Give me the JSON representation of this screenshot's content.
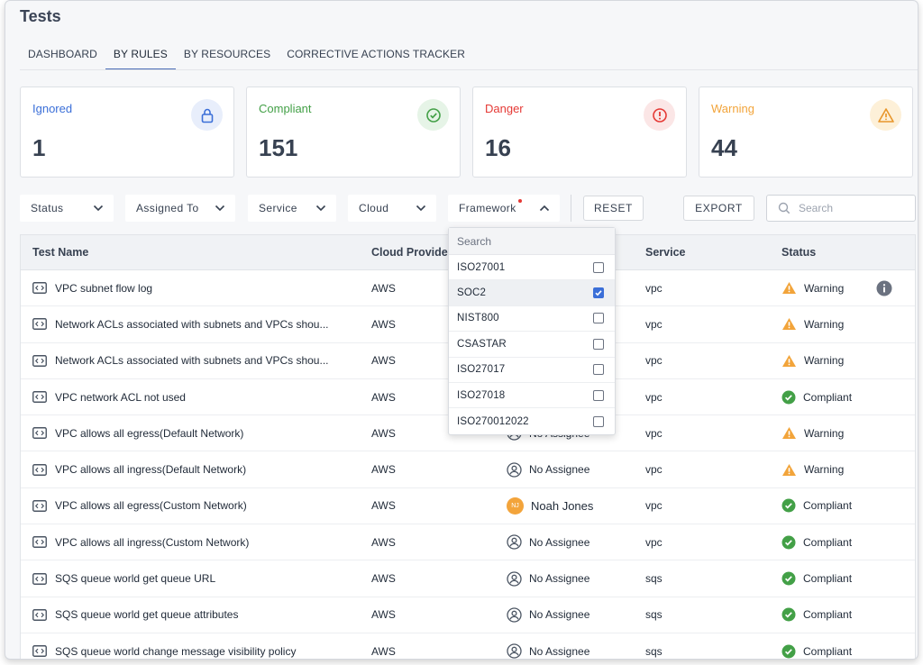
{
  "title": "Tests",
  "tabs": [
    {
      "label": "DASHBOARD",
      "active": false
    },
    {
      "label": "BY RULES",
      "active": true
    },
    {
      "label": "BY RESOURCES",
      "active": false
    },
    {
      "label": "CORRECTIVE ACTIONS TRACKER",
      "active": false
    }
  ],
  "summary_cards": [
    {
      "label": "Ignored",
      "value": "1",
      "color": "#3b6fd8",
      "bg": "#e8eefb",
      "icon": "lock-icon"
    },
    {
      "label": "Compliant",
      "value": "151",
      "color": "#43a047",
      "bg": "#e6f4e7",
      "icon": "check-circle-icon"
    },
    {
      "label": "Danger",
      "value": "16",
      "color": "#e53935",
      "bg": "#fbe6e6",
      "icon": "alert-circle-icon"
    },
    {
      "label": "Warning",
      "value": "44",
      "color": "#f2a43a",
      "bg": "#fdf0d8",
      "icon": "warning-triangle-icon"
    }
  ],
  "filters": {
    "status": "Status",
    "assigned_to": "Assigned To",
    "service": "Service",
    "cloud": "Cloud",
    "framework": "Framework",
    "reset": "RESET",
    "export": "EXPORT",
    "search_placeholder": "Search"
  },
  "table": {
    "headers": {
      "name": "Test Name",
      "cloud": "Cloud Provide",
      "service": "Service",
      "status": "Status"
    },
    "rows": [
      {
        "name": "VPC subnet flow log",
        "cloud": "AWS",
        "assignee": "",
        "service": "vpc",
        "status": "Warning"
      },
      {
        "name": "Network ACLs associated with subnets and VPCs shou...",
        "cloud": "AWS",
        "assignee": "",
        "service": "vpc",
        "status": "Warning"
      },
      {
        "name": "Network ACLs associated with subnets and VPCs shou...",
        "cloud": "AWS",
        "assignee": "",
        "service": "vpc",
        "status": "Warning"
      },
      {
        "name": "VPC network ACL not used",
        "cloud": "AWS",
        "assignee": "",
        "service": "vpc",
        "status": "Compliant"
      },
      {
        "name": "VPC allows all egress(Default Network)",
        "cloud": "AWS",
        "assignee": "No Assignee",
        "service": "vpc",
        "status": "Warning"
      },
      {
        "name": "VPC allows all ingress(Default Network)",
        "cloud": "AWS",
        "assignee": "No Assignee",
        "service": "vpc",
        "status": "Warning"
      },
      {
        "name": "VPC allows all egress(Custom Network)",
        "cloud": "AWS",
        "assignee": "Noah Jones",
        "assignee_initials": "NJ",
        "service": "vpc",
        "status": "Compliant"
      },
      {
        "name": "VPC allows all ingress(Custom Network)",
        "cloud": "AWS",
        "assignee": "No Assignee",
        "service": "vpc",
        "status": "Compliant"
      },
      {
        "name": "SQS queue world get queue URL",
        "cloud": "AWS",
        "assignee": "No Assignee",
        "service": "sqs",
        "status": "Compliant"
      },
      {
        "name": "SQS queue world get queue attributes",
        "cloud": "AWS",
        "assignee": "No Assignee",
        "service": "sqs",
        "status": "Compliant"
      },
      {
        "name": "SQS queue world change message visibility policy",
        "cloud": "AWS",
        "assignee": "No Assignee",
        "service": "sqs",
        "status": "Compliant"
      }
    ]
  },
  "framework_dropdown": {
    "search_placeholder": "Search",
    "options": [
      {
        "label": "ISO27001",
        "checked": false
      },
      {
        "label": "SOC2",
        "checked": true
      },
      {
        "label": "NIST800",
        "checked": false
      },
      {
        "label": "CSASTAR",
        "checked": false
      },
      {
        "label": "ISO27017",
        "checked": false
      },
      {
        "label": "ISO27018",
        "checked": false
      },
      {
        "label": "ISO270012022",
        "checked": false
      }
    ]
  },
  "colors": {
    "accent": "#4b6cb7",
    "warning": "#f2a43a",
    "compliant": "#43a047",
    "danger": "#e53935"
  }
}
